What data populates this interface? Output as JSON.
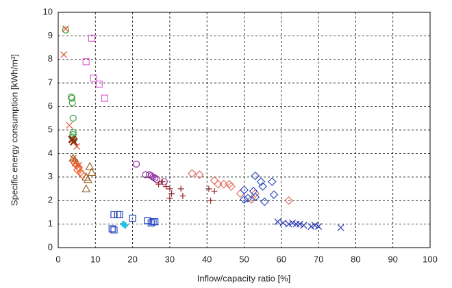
{
  "chart_data": {
    "type": "scatter",
    "x_label": "Inflow/capacity ratio [%]",
    "y_label": "Specific energy consumption [kWh/m³]",
    "xlim": [
      0,
      100
    ],
    "xticks": [
      0,
      10,
      20,
      30,
      40,
      50,
      60,
      70,
      80,
      90,
      100
    ],
    "ylim": [
      0,
      10
    ],
    "yticks": [
      0,
      1,
      2,
      3,
      4,
      5,
      6,
      7,
      8,
      9,
      10
    ],
    "grid": true,
    "series": [
      {
        "marker": "circle",
        "color": "#3a9a3a",
        "x": [
          2,
          3.5,
          3.7,
          3.8,
          4,
          4,
          4,
          3.8,
          4.2
        ],
        "values": [
          9.25,
          6.4,
          6.35,
          6.15,
          5.5,
          4.9,
          4.8,
          4.7,
          4.6
        ]
      },
      {
        "marker": "x",
        "color": "#e05030",
        "x": [
          1.5,
          2,
          3,
          3.5,
          4,
          5,
          4,
          4.5,
          5.5
        ],
        "values": [
          8.2,
          9.3,
          5.2,
          4.6,
          4.5,
          4.3,
          3.8,
          3.6,
          3.5
        ]
      },
      {
        "marker": "square",
        "color": "#e060d0",
        "x": [
          9,
          7.5,
          9.5,
          11,
          12.5
        ],
        "values": [
          8.9,
          7.9,
          7.2,
          6.95,
          6.35
        ]
      },
      {
        "marker": "x-large",
        "color": "#8b2a10",
        "x": [
          3.8,
          4.2
        ],
        "values": [
          4.6,
          4.5
        ]
      },
      {
        "marker": "triangle",
        "color": "#9a6a2a",
        "x": [
          4,
          4.5,
          5,
          8.5,
          9,
          7.5,
          8,
          7.5
        ],
        "values": [
          3.8,
          3.7,
          3.6,
          3.45,
          3.2,
          3,
          2.9,
          2.5
        ]
      },
      {
        "marker": "diamond",
        "color": "#f06030",
        "x": [
          4.5,
          5,
          5.5,
          5.2,
          6,
          6.5
        ],
        "values": [
          3.6,
          3.5,
          3.4,
          3.3,
          3.2,
          3.1
        ]
      },
      {
        "marker": "circle",
        "color": "#8a2a9a",
        "x": [
          21,
          23.5,
          24.5,
          25,
          25.5,
          26,
          26.5,
          28.5
        ],
        "values": [
          3.55,
          3.1,
          3.1,
          3.05,
          3,
          2.95,
          2.9,
          2.8
        ]
      },
      {
        "marker": "plus",
        "color": "#8a2020",
        "x": [
          27,
          28,
          29,
          30,
          30.5,
          30,
          33,
          33.5,
          40.5,
          41,
          42
        ],
        "values": [
          2.7,
          2.8,
          2.6,
          2.5,
          2.3,
          2.1,
          2.5,
          2.2,
          2.5,
          2,
          2.4
        ]
      },
      {
        "marker": "diamond",
        "color": "#e07060",
        "x": [
          36,
          38,
          42,
          43,
          44.5,
          46,
          46.5,
          49,
          52,
          53,
          62
        ],
        "values": [
          3.15,
          3.1,
          2.85,
          2.7,
          2.7,
          2.7,
          2.6,
          2.3,
          2.05,
          2.3,
          2
        ]
      },
      {
        "marker": "diamond",
        "color": "#3050c0",
        "x": [
          50,
          52.5,
          53,
          54.5,
          55,
          57.5,
          58,
          55.5,
          51,
          50,
          53
        ],
        "values": [
          2.45,
          2.4,
          3.05,
          2.8,
          2.6,
          2.8,
          2.25,
          1.95,
          2.1,
          2.05,
          2.15
        ]
      },
      {
        "marker": "square",
        "color": "#2040c0",
        "x": [
          15,
          16,
          16.5,
          14.5,
          15,
          20,
          24,
          25.5,
          26,
          25
        ],
        "values": [
          1.4,
          1.4,
          1.4,
          0.8,
          0.75,
          1.25,
          1.15,
          1.1,
          1.1,
          1.05
        ]
      },
      {
        "marker": "plus-filled",
        "color": "#20c0e0",
        "x": [
          17.5,
          18
        ],
        "values": [
          1,
          0.95
        ]
      },
      {
        "marker": "x",
        "color": "#2030b0",
        "x": [
          59,
          60.5,
          62,
          63,
          64,
          65,
          66,
          68,
          69,
          70,
          76
        ],
        "values": [
          1.1,
          1.05,
          1,
          1.05,
          1,
          1,
          0.95,
          0.9,
          0.95,
          0.9,
          0.85
        ]
      }
    ]
  }
}
